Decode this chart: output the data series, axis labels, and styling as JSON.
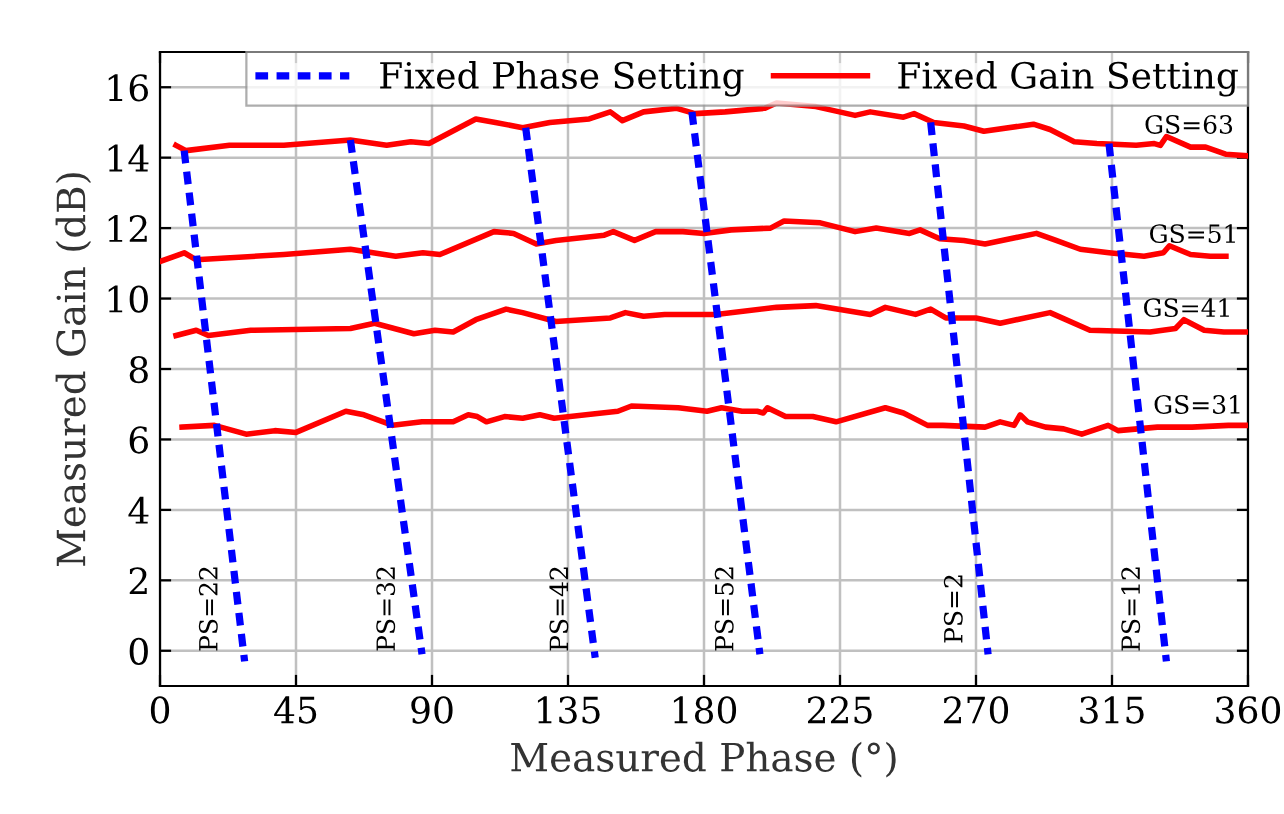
{
  "chart_data": {
    "type": "line",
    "xlabel": "Measured Phase (°)",
    "ylabel": "Measured Gain (dB)",
    "xlim": [
      0,
      360
    ],
    "xticks": [
      0,
      45,
      90,
      135,
      180,
      225,
      270,
      315,
      360
    ],
    "ylim": [
      -1,
      17
    ],
    "yticks": [
      0,
      2,
      4,
      6,
      8,
      10,
      12,
      14,
      16
    ],
    "grid": true,
    "legend": "top right",
    "marker": "none",
    "series": [
      {
        "name": "Fixed Phase Setting",
        "color": "#0000ff",
        "line_style": "dashed",
        "x": [
          8,
          28
        ],
        "values": [
          14.2,
          -0.3
        ]
      },
      {
        "color": "#0000ff",
        "line_style": "dashed",
        "x": [
          63,
          86.7
        ],
        "values": [
          14.5,
          -0.1
        ]
      },
      {
        "color": "#0000ff",
        "line_style": "dashed",
        "x": [
          121,
          144
        ],
        "values": [
          14.85,
          -0.2
        ]
      },
      {
        "color": "#0000ff",
        "line_style": "dashed",
        "x": [
          176,
          198.5
        ],
        "values": [
          15.3,
          -0.1
        ]
      },
      {
        "color": "#0000ff",
        "line_style": "dashed",
        "x": [
          255,
          274
        ],
        "values": [
          15.0,
          -0.1
        ]
      },
      {
        "color": "#0000ff",
        "line_style": "dashed",
        "x": [
          314,
          333
        ],
        "values": [
          14.4,
          -0.3
        ]
      },
      {
        "name": "Fixed Gain Setting",
        "color": "#ff0000",
        "line_style": "solid",
        "x": [
          5.3,
          8.6,
          23,
          41,
          63,
          75,
          83,
          89,
          104.5,
          111,
          120,
          129,
          142,
          149,
          153,
          160,
          171,
          177,
          187,
          200,
          204,
          217,
          230,
          235,
          246,
          249.5,
          256,
          266,
          272.6,
          289,
          294.5,
          302.5,
          310,
          323,
          329,
          331,
          333,
          341,
          346,
          352.6,
          360
        ],
        "values": [
          14.35,
          14.2,
          14.35,
          14.35,
          14.5,
          14.35,
          14.45,
          14.4,
          15.1,
          15.0,
          14.85,
          15.0,
          15.1,
          15.3,
          15.05,
          15.3,
          15.4,
          15.25,
          15.3,
          15.4,
          15.55,
          15.45,
          15.2,
          15.3,
          15.15,
          15.25,
          15.0,
          14.9,
          14.75,
          14.95,
          14.8,
          14.45,
          14.4,
          14.35,
          14.4,
          14.35,
          14.6,
          14.3,
          14.3,
          14.1,
          14.05
        ]
      },
      {
        "color": "#ff0000",
        "line_style": "solid",
        "x": [
          0,
          8,
          12,
          41,
          63,
          78,
          87,
          92.6,
          110.5,
          117,
          124.5,
          131,
          147,
          150,
          157,
          164,
          173,
          180,
          189,
          202,
          206.5,
          218.5,
          230,
          237,
          248,
          251.5,
          258,
          266,
          273,
          290,
          296.5,
          304.5,
          314,
          325.6,
          332,
          334,
          341,
          347.5,
          352.7
        ],
        "values": [
          11.05,
          11.3,
          11.1,
          11.25,
          11.4,
          11.2,
          11.3,
          11.25,
          11.9,
          11.85,
          11.55,
          11.65,
          11.8,
          11.9,
          11.65,
          11.9,
          11.9,
          11.85,
          11.95,
          12.0,
          12.2,
          12.15,
          11.9,
          12.0,
          11.85,
          11.95,
          11.7,
          11.65,
          11.55,
          11.85,
          11.65,
          11.4,
          11.3,
          11.2,
          11.3,
          11.5,
          11.25,
          11.2,
          11.2
        ]
      },
      {
        "color": "#ff0000",
        "line_style": "solid",
        "x": [
          5.3,
          12,
          16,
          30,
          63,
          71,
          84,
          91,
          97,
          104.5,
          114.5,
          120,
          131,
          149,
          154,
          160,
          167,
          184,
          204,
          217,
          235,
          240,
          250,
          255,
          260,
          270,
          278,
          294.5,
          307.7,
          327.6,
          336,
          338.8,
          345.5,
          352,
          360
        ],
        "values": [
          8.95,
          9.1,
          8.95,
          9.1,
          9.15,
          9.3,
          9.0,
          9.1,
          9.05,
          9.4,
          9.7,
          9.6,
          9.35,
          9.45,
          9.6,
          9.5,
          9.55,
          9.55,
          9.75,
          9.8,
          9.55,
          9.75,
          9.55,
          9.7,
          9.45,
          9.45,
          9.3,
          9.6,
          9.1,
          9.05,
          9.15,
          9.4,
          9.1,
          9.05,
          9.05
        ]
      },
      {
        "color": "#ff0000",
        "line_style": "solid",
        "x": [
          7.3,
          18,
          28.5,
          38,
          45,
          61.5,
          67.5,
          77,
          86.7,
          97,
          102,
          105,
          108,
          114,
          120,
          125.7,
          130.4,
          151.5,
          156,
          171.5,
          181,
          185.8,
          192.6,
          197.6,
          199.6,
          201,
          207,
          216,
          223.7,
          240,
          246,
          254,
          259,
          273,
          278,
          282.6,
          284.6,
          287,
          293,
          299,
          305,
          313.7,
          317,
          330,
          341.5,
          353.5,
          360
        ],
        "values": [
          6.35,
          6.4,
          6.15,
          6.25,
          6.2,
          6.8,
          6.7,
          6.4,
          6.5,
          6.5,
          6.7,
          6.65,
          6.5,
          6.65,
          6.6,
          6.7,
          6.6,
          6.8,
          6.95,
          6.9,
          6.8,
          6.9,
          6.8,
          6.8,
          6.75,
          6.9,
          6.65,
          6.65,
          6.5,
          6.9,
          6.75,
          6.4,
          6.4,
          6.35,
          6.5,
          6.4,
          6.7,
          6.5,
          6.35,
          6.3,
          6.15,
          6.4,
          6.25,
          6.35,
          6.35,
          6.4,
          6.4
        ]
      }
    ],
    "annotations": [
      {
        "text": "GS=63",
        "x": 346,
        "y": 14.3
      },
      {
        "text": "GS=51",
        "x": 347.5,
        "y": 11.2
      },
      {
        "text": "GS=41",
        "x": 345.5,
        "y": 9.1
      },
      {
        "text": "GS=31",
        "x": 349,
        "y": 6.35
      },
      {
        "text": "PS=22",
        "x": 25.9,
        "y": 1.2
      },
      {
        "text": "PS=32",
        "x": 84.6,
        "y": 1.2
      },
      {
        "text": "PS=42",
        "x": 141.9,
        "y": 1.2
      },
      {
        "text": "PS=52",
        "x": 196.6,
        "y": 1.2
      },
      {
        "text": "PS=2",
        "x": 272.4,
        "y": 1.2
      },
      {
        "text": "PS=12",
        "x": 331.1,
        "y": 1.2
      }
    ]
  }
}
